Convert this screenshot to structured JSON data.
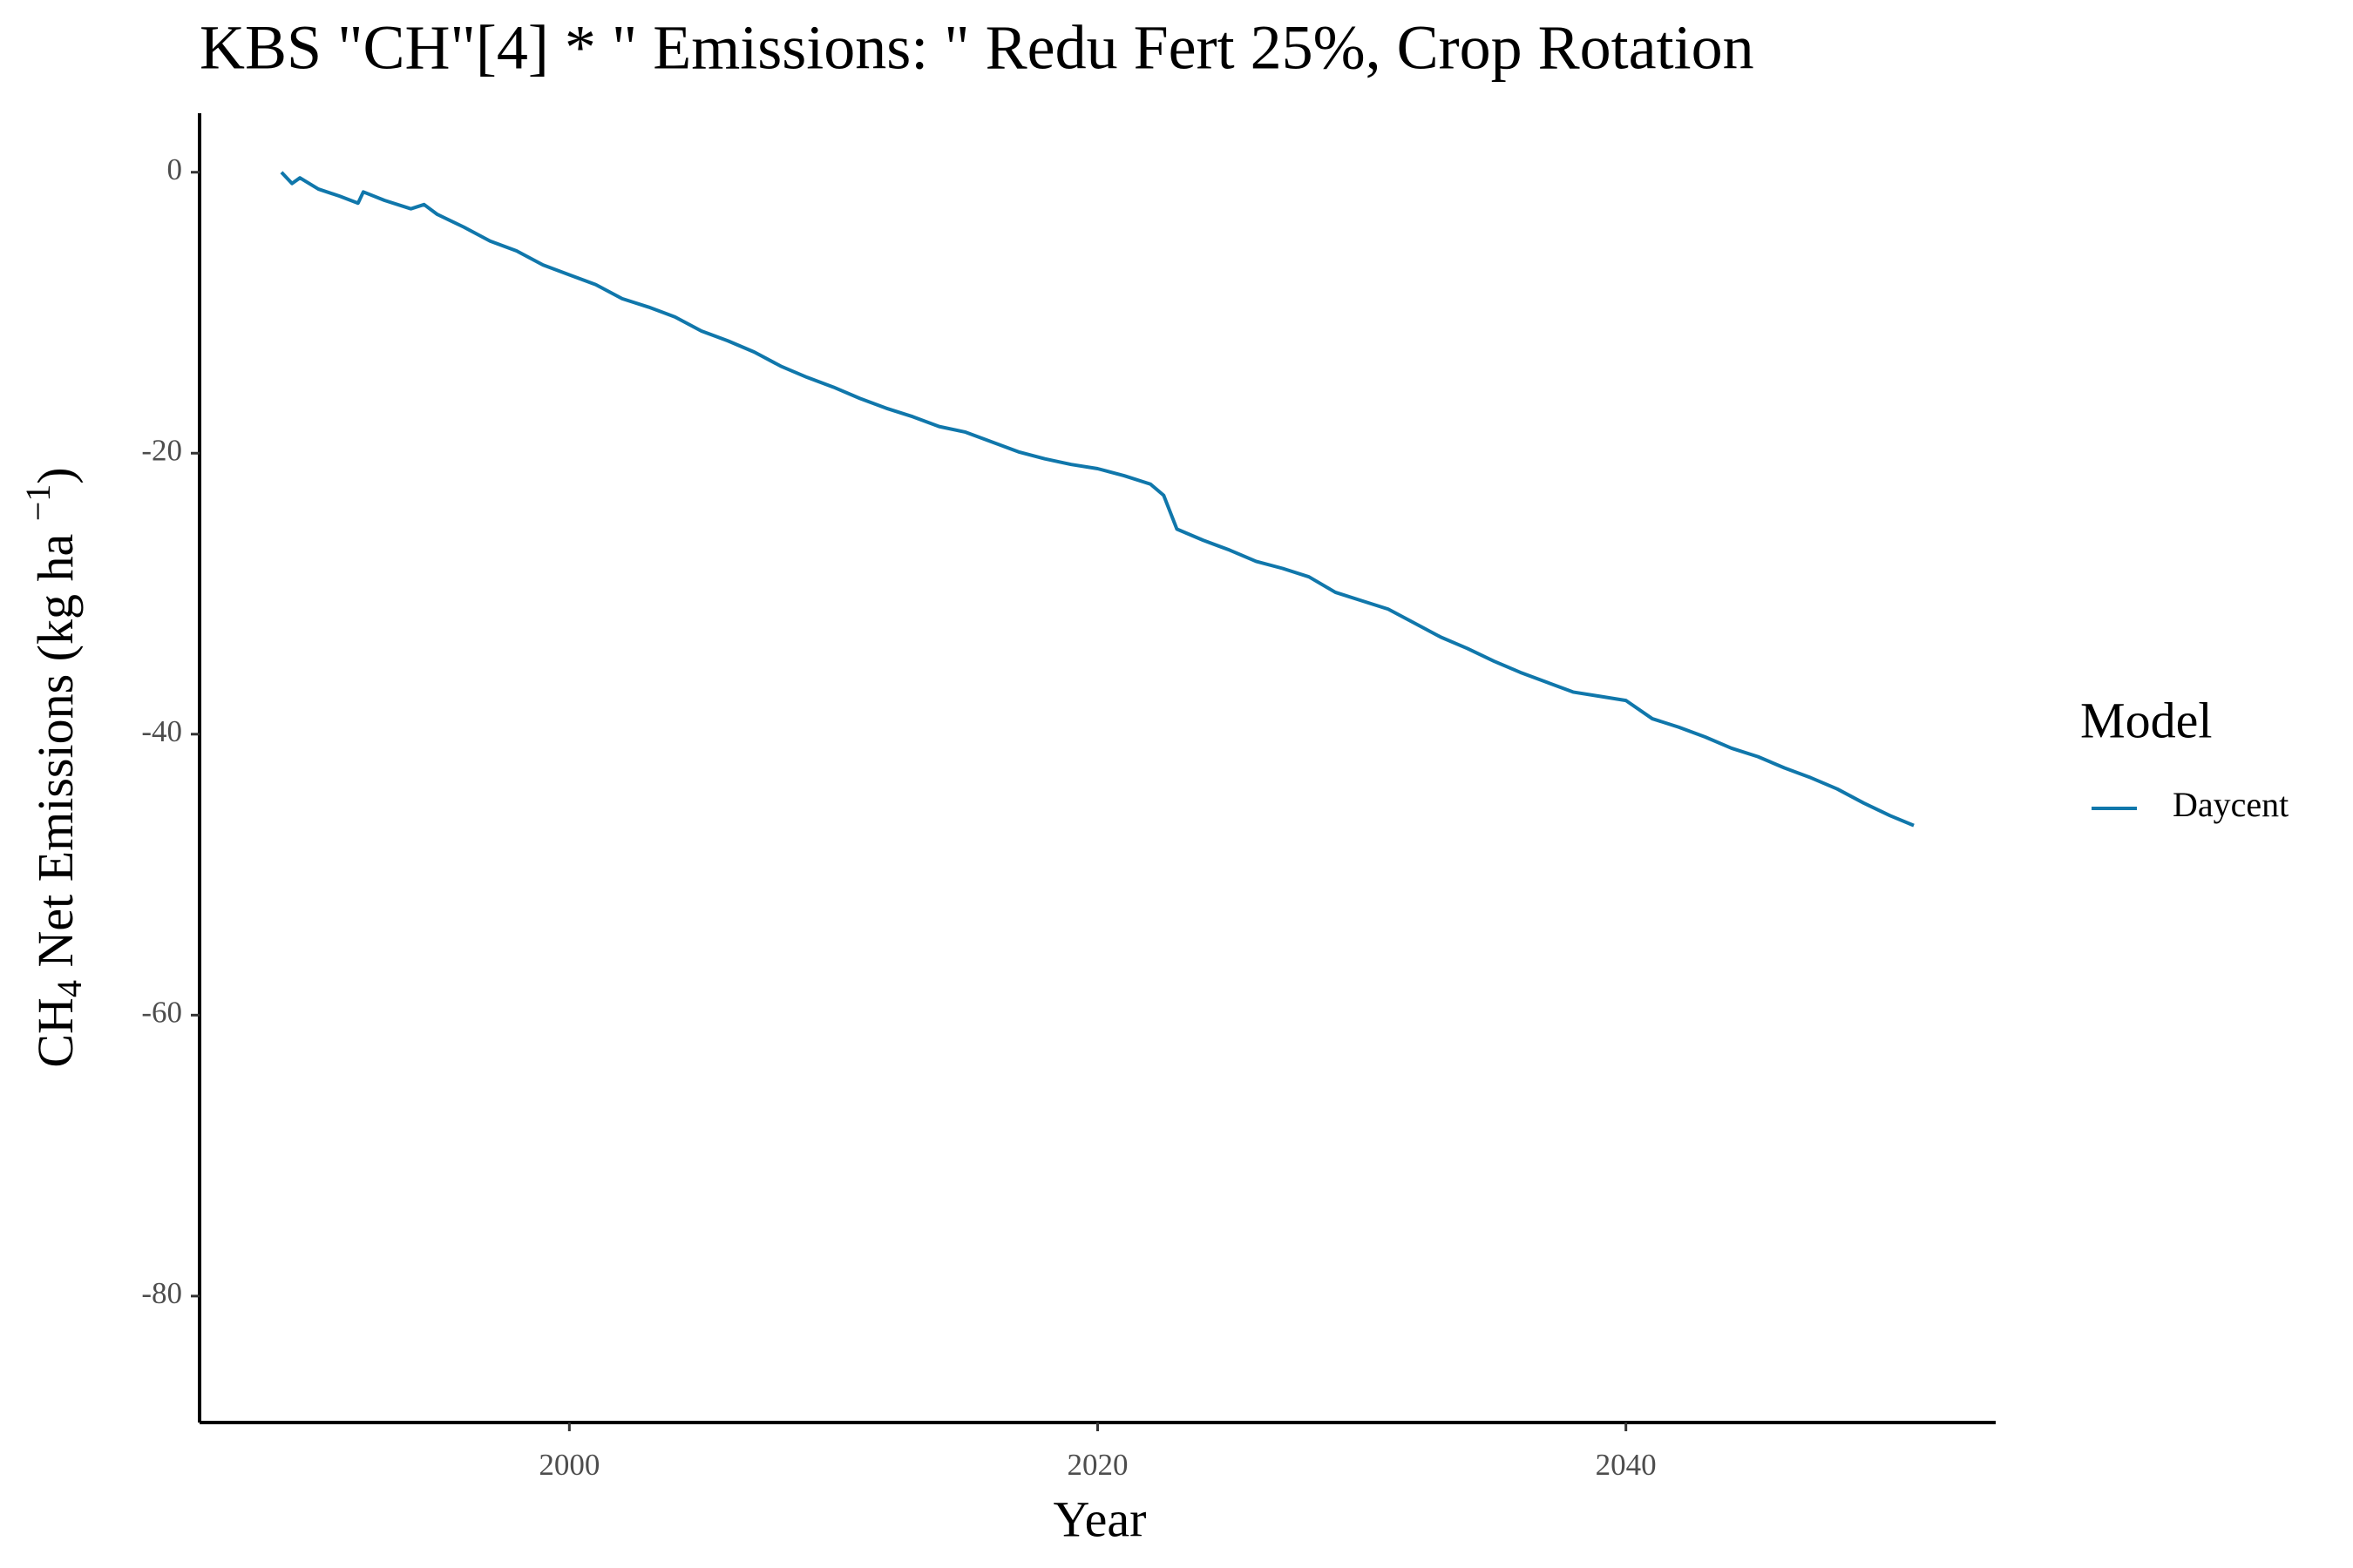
{
  "chart_data": {
    "type": "line",
    "title": "KBS \"CH\"[4] * \" Emissions: \" Redu Fert 25%, Crop Rotation",
    "xlabel": "Year",
    "ylabel_parts": [
      "CH",
      "4",
      " Net Emissions (kg ha ",
      "−1",
      ")"
    ],
    "legend_title": "Model",
    "x": [
      1989.1,
      1989.5,
      1989.8,
      1990.5,
      1991.3,
      1992.0,
      1992.2,
      1993.0,
      1994.0,
      1994.5,
      1995.0,
      1996.0,
      1997.0,
      1998.0,
      1999.0,
      2000.0,
      2001.0,
      2002.0,
      2003.0,
      2004.0,
      2005.0,
      2006.0,
      2007.0,
      2008.0,
      2009.0,
      2010.0,
      2011.0,
      2012.0,
      2013.0,
      2014.0,
      2015.0,
      2016.0,
      2017.0,
      2018.0,
      2019.0,
      2020.0,
      2021.0,
      2022.0,
      2022.5,
      2023.0,
      2024.0,
      2025.0,
      2026.0,
      2027.0,
      2028.0,
      2029.0,
      2030.0,
      2031.0,
      2032.0,
      2033.0,
      2034.0,
      2035.0,
      2036.0,
      2037.0,
      2038.0,
      2039.0,
      2040.0,
      2041.0,
      2042.0,
      2043.0,
      2044.0,
      2045.0,
      2046.0,
      2047.0,
      2048.0,
      2049.0,
      2050.0,
      2050.9
    ],
    "series": [
      {
        "name": "Daycent",
        "color": "#1077ab",
        "values": [
          0,
          -0.8,
          -0.4,
          -1.2,
          -1.7,
          -2.2,
          -1.4,
          -2.0,
          -2.6,
          -2.3,
          -3.0,
          -3.9,
          -4.9,
          -5.6,
          -6.6,
          -7.3,
          -8.0,
          -9.0,
          -9.6,
          -10.3,
          -11.3,
          -12.0,
          -12.8,
          -13.8,
          -14.6,
          -15.3,
          -16.1,
          -16.8,
          -17.4,
          -18.1,
          -18.5,
          -19.2,
          -19.9,
          -20.4,
          -20.8,
          -21.1,
          -21.6,
          -22.2,
          -23.0,
          -25.4,
          -26.2,
          -26.9,
          -27.7,
          -28.2,
          -28.8,
          -29.9,
          -30.5,
          -31.1,
          -32.1,
          -33.1,
          -33.9,
          -34.8,
          -35.6,
          -36.3,
          -37.0,
          -37.3,
          -37.6,
          -38.9,
          -39.5,
          -40.2,
          -41.0,
          -41.6,
          -42.4,
          -43.1,
          -43.9,
          -44.9,
          -45.8,
          -46.5
        ]
      }
    ],
    "xlim": [
      1986,
      2054
    ],
    "ylim": [
      -89,
      4.2
    ],
    "xticks": [
      2000,
      2020,
      2040
    ],
    "yticks": [
      0,
      -20,
      -40,
      -60,
      -80
    ],
    "grid": false
  }
}
